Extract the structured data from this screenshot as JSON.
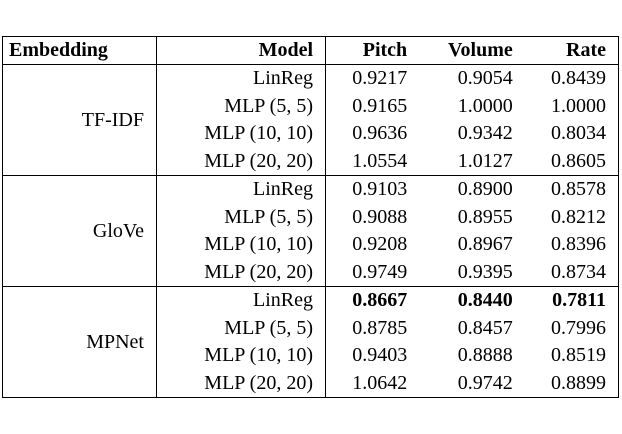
{
  "table": {
    "headers": [
      "Embedding",
      "Model",
      "Pitch",
      "Volume",
      "Rate"
    ],
    "groups": [
      {
        "embedding": "TF-IDF",
        "rows": [
          {
            "model": "LinReg",
            "pitch": "0.9217",
            "volume": "0.9054",
            "rate": "0.8439"
          },
          {
            "model": "MLP (5, 5)",
            "pitch": "0.9165",
            "volume": "1.0000",
            "rate": "1.0000"
          },
          {
            "model": "MLP (10, 10)",
            "pitch": "0.9636",
            "volume": "0.9342",
            "rate": "0.8034"
          },
          {
            "model": "MLP (20, 20)",
            "pitch": "1.0554",
            "volume": "1.0127",
            "rate": "0.8605"
          }
        ]
      },
      {
        "embedding": "GloVe",
        "rows": [
          {
            "model": "LinReg",
            "pitch": "0.9103",
            "volume": "0.8900",
            "rate": "0.8578"
          },
          {
            "model": "MLP (5, 5)",
            "pitch": "0.9088",
            "volume": "0.8955",
            "rate": "0.8212"
          },
          {
            "model": "MLP (10, 10)",
            "pitch": "0.9208",
            "volume": "0.8967",
            "rate": "0.8396"
          },
          {
            "model": "MLP (20, 20)",
            "pitch": "0.9749",
            "volume": "0.9395",
            "rate": "0.8734"
          }
        ]
      },
      {
        "embedding": "MPNet",
        "rows": [
          {
            "model": "LinReg",
            "pitch": "0.8667",
            "volume": "0.8440",
            "rate": "0.7811",
            "bold": true
          },
          {
            "model": "MLP (5, 5)",
            "pitch": "0.8785",
            "volume": "0.8457",
            "rate": "0.7996"
          },
          {
            "model": "MLP (10, 10)",
            "pitch": "0.9403",
            "volume": "0.8888",
            "rate": "0.8519"
          },
          {
            "model": "MLP (20, 20)",
            "pitch": "1.0642",
            "volume": "0.9742",
            "rate": "0.8899"
          }
        ]
      }
    ]
  }
}
